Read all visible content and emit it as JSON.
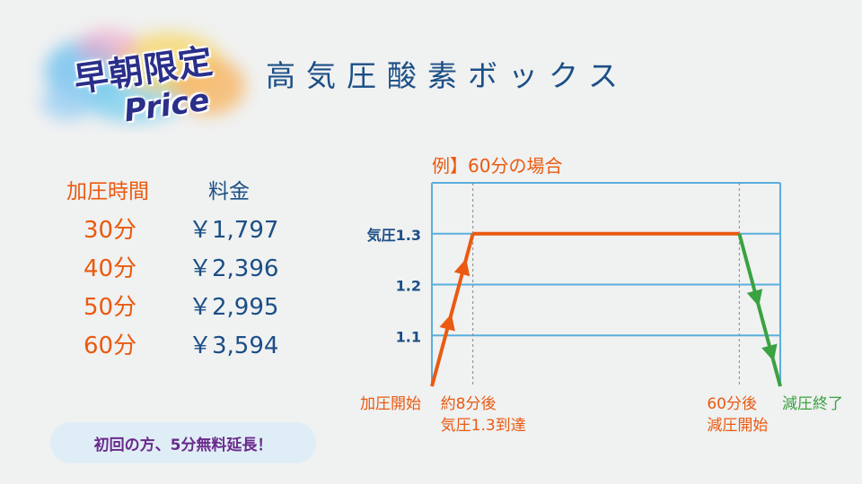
{
  "badge": {
    "line1": "早朝限定",
    "line2": "Price"
  },
  "title": "高気圧酸素ボックス",
  "price_table": {
    "header_time": "加圧時間",
    "header_fee": "料金",
    "rows": [
      {
        "duration": "30分",
        "price": "￥1,797"
      },
      {
        "duration": "40分",
        "price": "￥2,396"
      },
      {
        "duration": "50分",
        "price": "￥2,995"
      },
      {
        "duration": "60分",
        "price": "￥3,594"
      }
    ]
  },
  "promo": "初回の方、5分無料延長！",
  "colors": {
    "orange": "#ea5a10",
    "green": "#3aa240",
    "navy": "#1b4f86",
    "grid": "#5aaedc",
    "promo_text": "#6a2a8c"
  },
  "chart_data": {
    "type": "line",
    "title": "例】60分の場合",
    "ylim": [
      1.0,
      1.4
    ],
    "yticks": [
      {
        "value": 1.3,
        "label": "気圧1.3"
      },
      {
        "value": 1.2,
        "label": "1.2"
      },
      {
        "value": 1.1,
        "label": "1.1"
      }
    ],
    "xlim": [
      0,
      68
    ],
    "grid": true,
    "series": [
      {
        "phase": "rise",
        "color": "orange",
        "points": [
          [
            0,
            1.0
          ],
          [
            8,
            1.3
          ]
        ]
      },
      {
        "phase": "hold",
        "color": "orange",
        "points": [
          [
            8,
            1.3
          ],
          [
            60,
            1.3
          ]
        ]
      },
      {
        "phase": "fall",
        "color": "green",
        "points": [
          [
            60,
            1.3
          ],
          [
            68,
            1.0
          ]
        ]
      }
    ],
    "annotations": [
      {
        "x": 0,
        "lines": [
          "加圧開始"
        ],
        "color": "orange"
      },
      {
        "x": 8,
        "lines": [
          "約8分後",
          "気圧1.3到達"
        ],
        "color": "orange"
      },
      {
        "x": 60,
        "lines": [
          "60分後",
          "減圧開始"
        ],
        "color": "orange"
      },
      {
        "x": 68,
        "lines": [
          "減圧終了"
        ],
        "color": "green"
      }
    ]
  }
}
